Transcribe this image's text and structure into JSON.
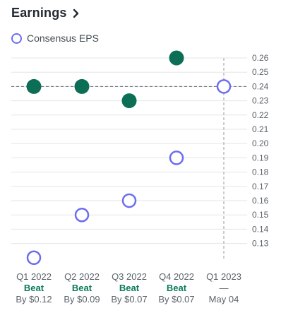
{
  "header": {
    "title": "Earnings",
    "chevron_icon": "chevron-right-icon"
  },
  "legend": {
    "consensus_label": "Consensus EPS"
  },
  "colors": {
    "actual": "#0b6e55",
    "consensus": "#6b6ef0"
  },
  "chart_data": {
    "type": "scatter",
    "title": "Earnings",
    "categories": [
      "Q1 2022",
      "Q2 2022",
      "Q3 2022",
      "Q4 2022",
      "Q1 2023"
    ],
    "series": [
      {
        "values": [
          0.24,
          0.24,
          0.23,
          0.26,
          null
        ]
      },
      {
        "name": "Consensus EPS",
        "values": [
          0.12,
          0.15,
          0.16,
          0.19,
          0.24
        ]
      }
    ],
    "y_ticks": [
      "0.26",
      "0.25",
      "0.24",
      "0.23",
      "0.22",
      "0.21",
      "0.20",
      "0.19",
      "0.18",
      "0.17",
      "0.16",
      "0.15",
      "0.14",
      "0.13"
    ],
    "ylim": [
      0.12,
      0.26
    ],
    "reference_line": 0.24,
    "grid": true,
    "results": [
      {
        "label": "Beat",
        "detail": "By $0.12"
      },
      {
        "label": "Beat",
        "detail": "By $0.09"
      },
      {
        "label": "Beat",
        "detail": "By $0.07"
      },
      {
        "label": "Beat",
        "detail": "By $0.07"
      },
      {
        "label": "—",
        "detail": "May 04"
      }
    ]
  }
}
